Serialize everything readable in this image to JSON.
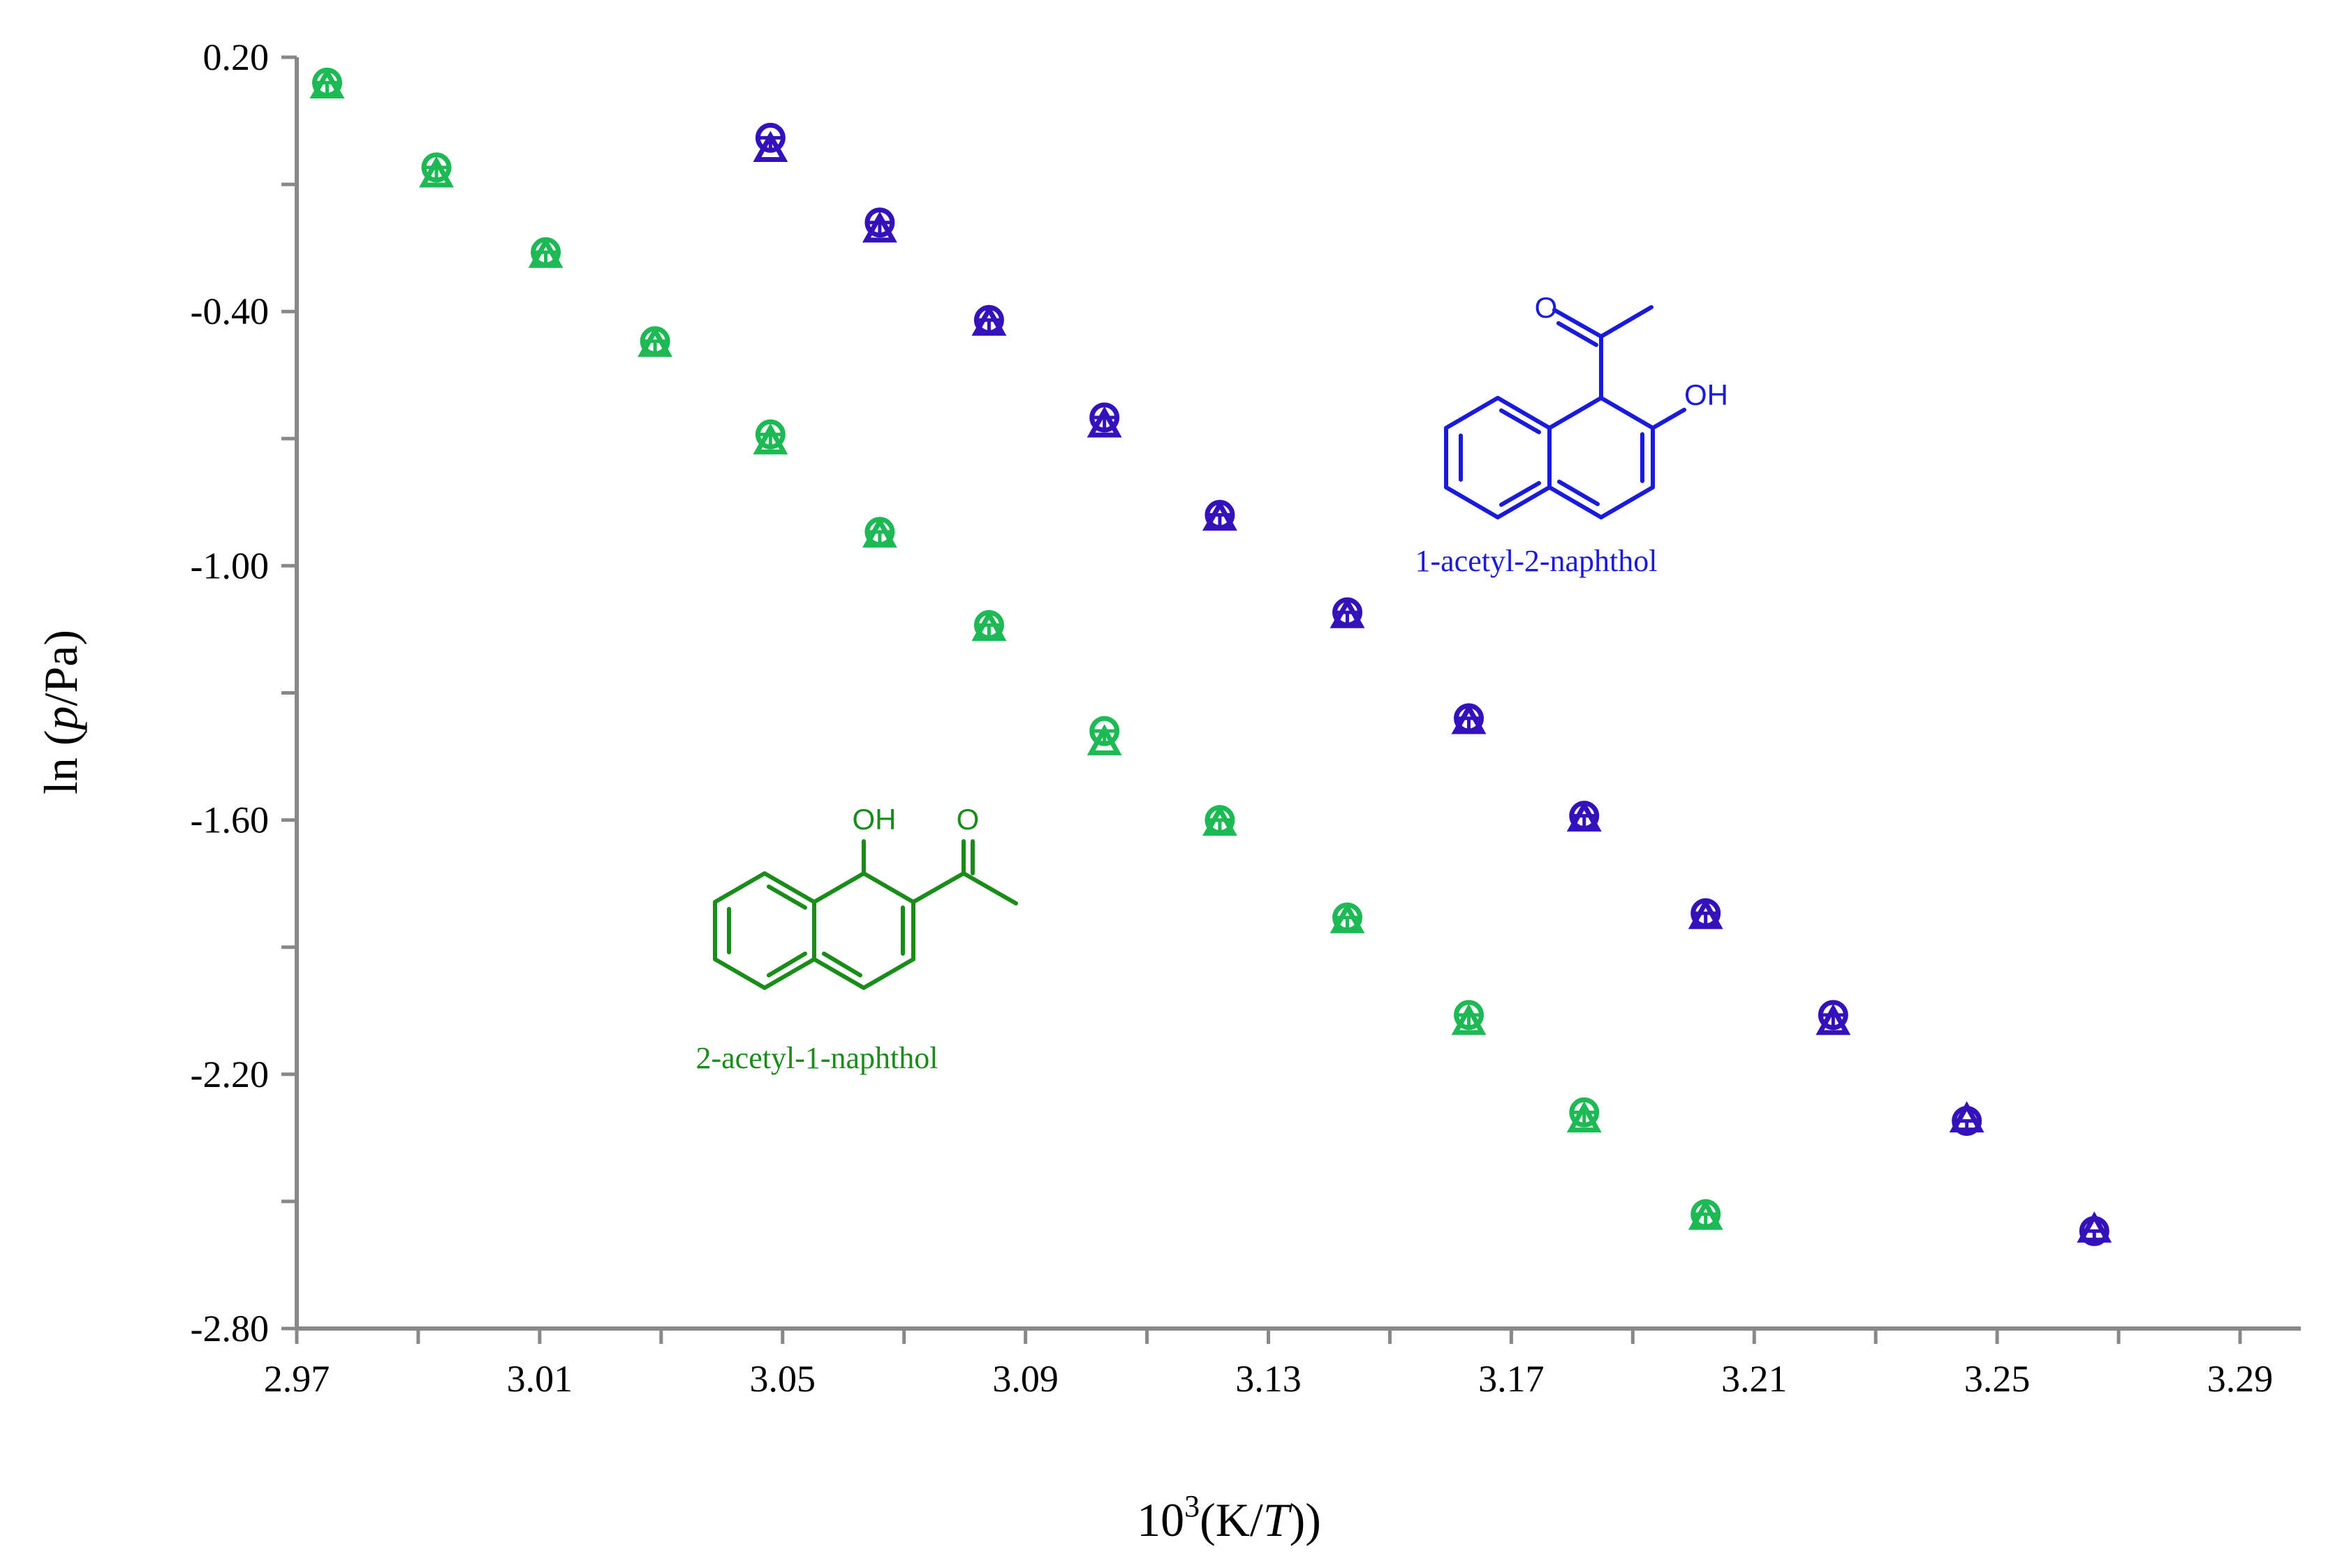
{
  "chart_data": {
    "type": "scatter",
    "title": "",
    "xlabel": {
      "prefix": "10",
      "sup": "3",
      "open": "(K/",
      "var": "T",
      "close": "))"
    },
    "ylabel": {
      "fn": "ln",
      "open": "(",
      "var": "p",
      "close": "/Pa)"
    },
    "xlim": [
      2.97,
      3.3
    ],
    "ylim": [
      -2.8,
      0.2
    ],
    "x_ticks": [
      "2.97",
      "3.01",
      "3.05",
      "3.09",
      "3.13",
      "3.17",
      "3.21",
      "3.25",
      "3.29"
    ],
    "y_ticks": [
      "0.20",
      "-0.40",
      "-1.00",
      "-1.60",
      "-2.20",
      "-2.80"
    ],
    "grid": false,
    "series": [
      {
        "name": "2-acetyl-1-naphthol",
        "color": "#1db954",
        "points": [
          {
            "x": 2.975,
            "y": 0.13,
            "y_circle": 0.14
          },
          {
            "x": 2.993,
            "y": -0.08,
            "y_circle": -0.06
          },
          {
            "x": 3.011,
            "y": -0.27,
            "y_circle": -0.26
          },
          {
            "x": 3.029,
            "y": -0.48,
            "y_circle": -0.47
          },
          {
            "x": 3.048,
            "y": -0.71,
            "y_circle": -0.69
          },
          {
            "x": 3.066,
            "y": -0.93,
            "y_circle": -0.92
          },
          {
            "x": 3.084,
            "y": -1.15,
            "y_circle": -1.14
          },
          {
            "x": 3.103,
            "y": -1.42,
            "y_circle": -1.39
          },
          {
            "x": 3.122,
            "y": -1.61,
            "y_circle": -1.6
          },
          {
            "x": 3.143,
            "y": -1.84,
            "y_circle": -1.83
          },
          {
            "x": 3.163,
            "y": -2.08,
            "y_circle": -2.06
          },
          {
            "x": 3.182,
            "y": -2.31,
            "y_circle": -2.29
          },
          {
            "x": 3.202,
            "y": -2.54,
            "y_circle": -2.53
          }
        ]
      },
      {
        "name": "1-acetyl-2-naphthol",
        "color": "#3311bb",
        "points": [
          {
            "x": 3.048,
            "y": -0.02,
            "y_circle": 0.01
          },
          {
            "x": 3.066,
            "y": -0.21,
            "y_circle": -0.19
          },
          {
            "x": 3.084,
            "y": -0.43,
            "y_circle": -0.42
          },
          {
            "x": 3.103,
            "y": -0.67,
            "y_circle": -0.65
          },
          {
            "x": 3.122,
            "y": -0.89,
            "y_circle": -0.88
          },
          {
            "x": 3.143,
            "y": -1.12,
            "y_circle": -1.11
          },
          {
            "x": 3.163,
            "y": -1.37,
            "y_circle": -1.36
          },
          {
            "x": 3.182,
            "y": -1.6,
            "y_circle": -1.59
          },
          {
            "x": 3.202,
            "y": -1.83,
            "y_circle": -1.82
          },
          {
            "x": 3.223,
            "y": -2.08,
            "y_circle": -2.06
          },
          {
            "x": 3.245,
            "y": -2.31,
            "y_circle": -2.31
          },
          {
            "x": 3.266,
            "y": -2.57,
            "y_circle": -2.57
          }
        ]
      }
    ],
    "annotations": [
      {
        "text": "1-acetyl-2-naphthol",
        "color": "#1a1adc"
      },
      {
        "text": "2-acetyl-1-naphthol",
        "color": "#1a8c1a"
      }
    ]
  },
  "structures": {
    "blue": {
      "carbonyl_o": "O",
      "hydroxyl": "OH",
      "color": "#1a1adc"
    },
    "green": {
      "carbonyl_o": "O",
      "hydroxyl": "OH",
      "color": "#1a8c1a"
    }
  }
}
